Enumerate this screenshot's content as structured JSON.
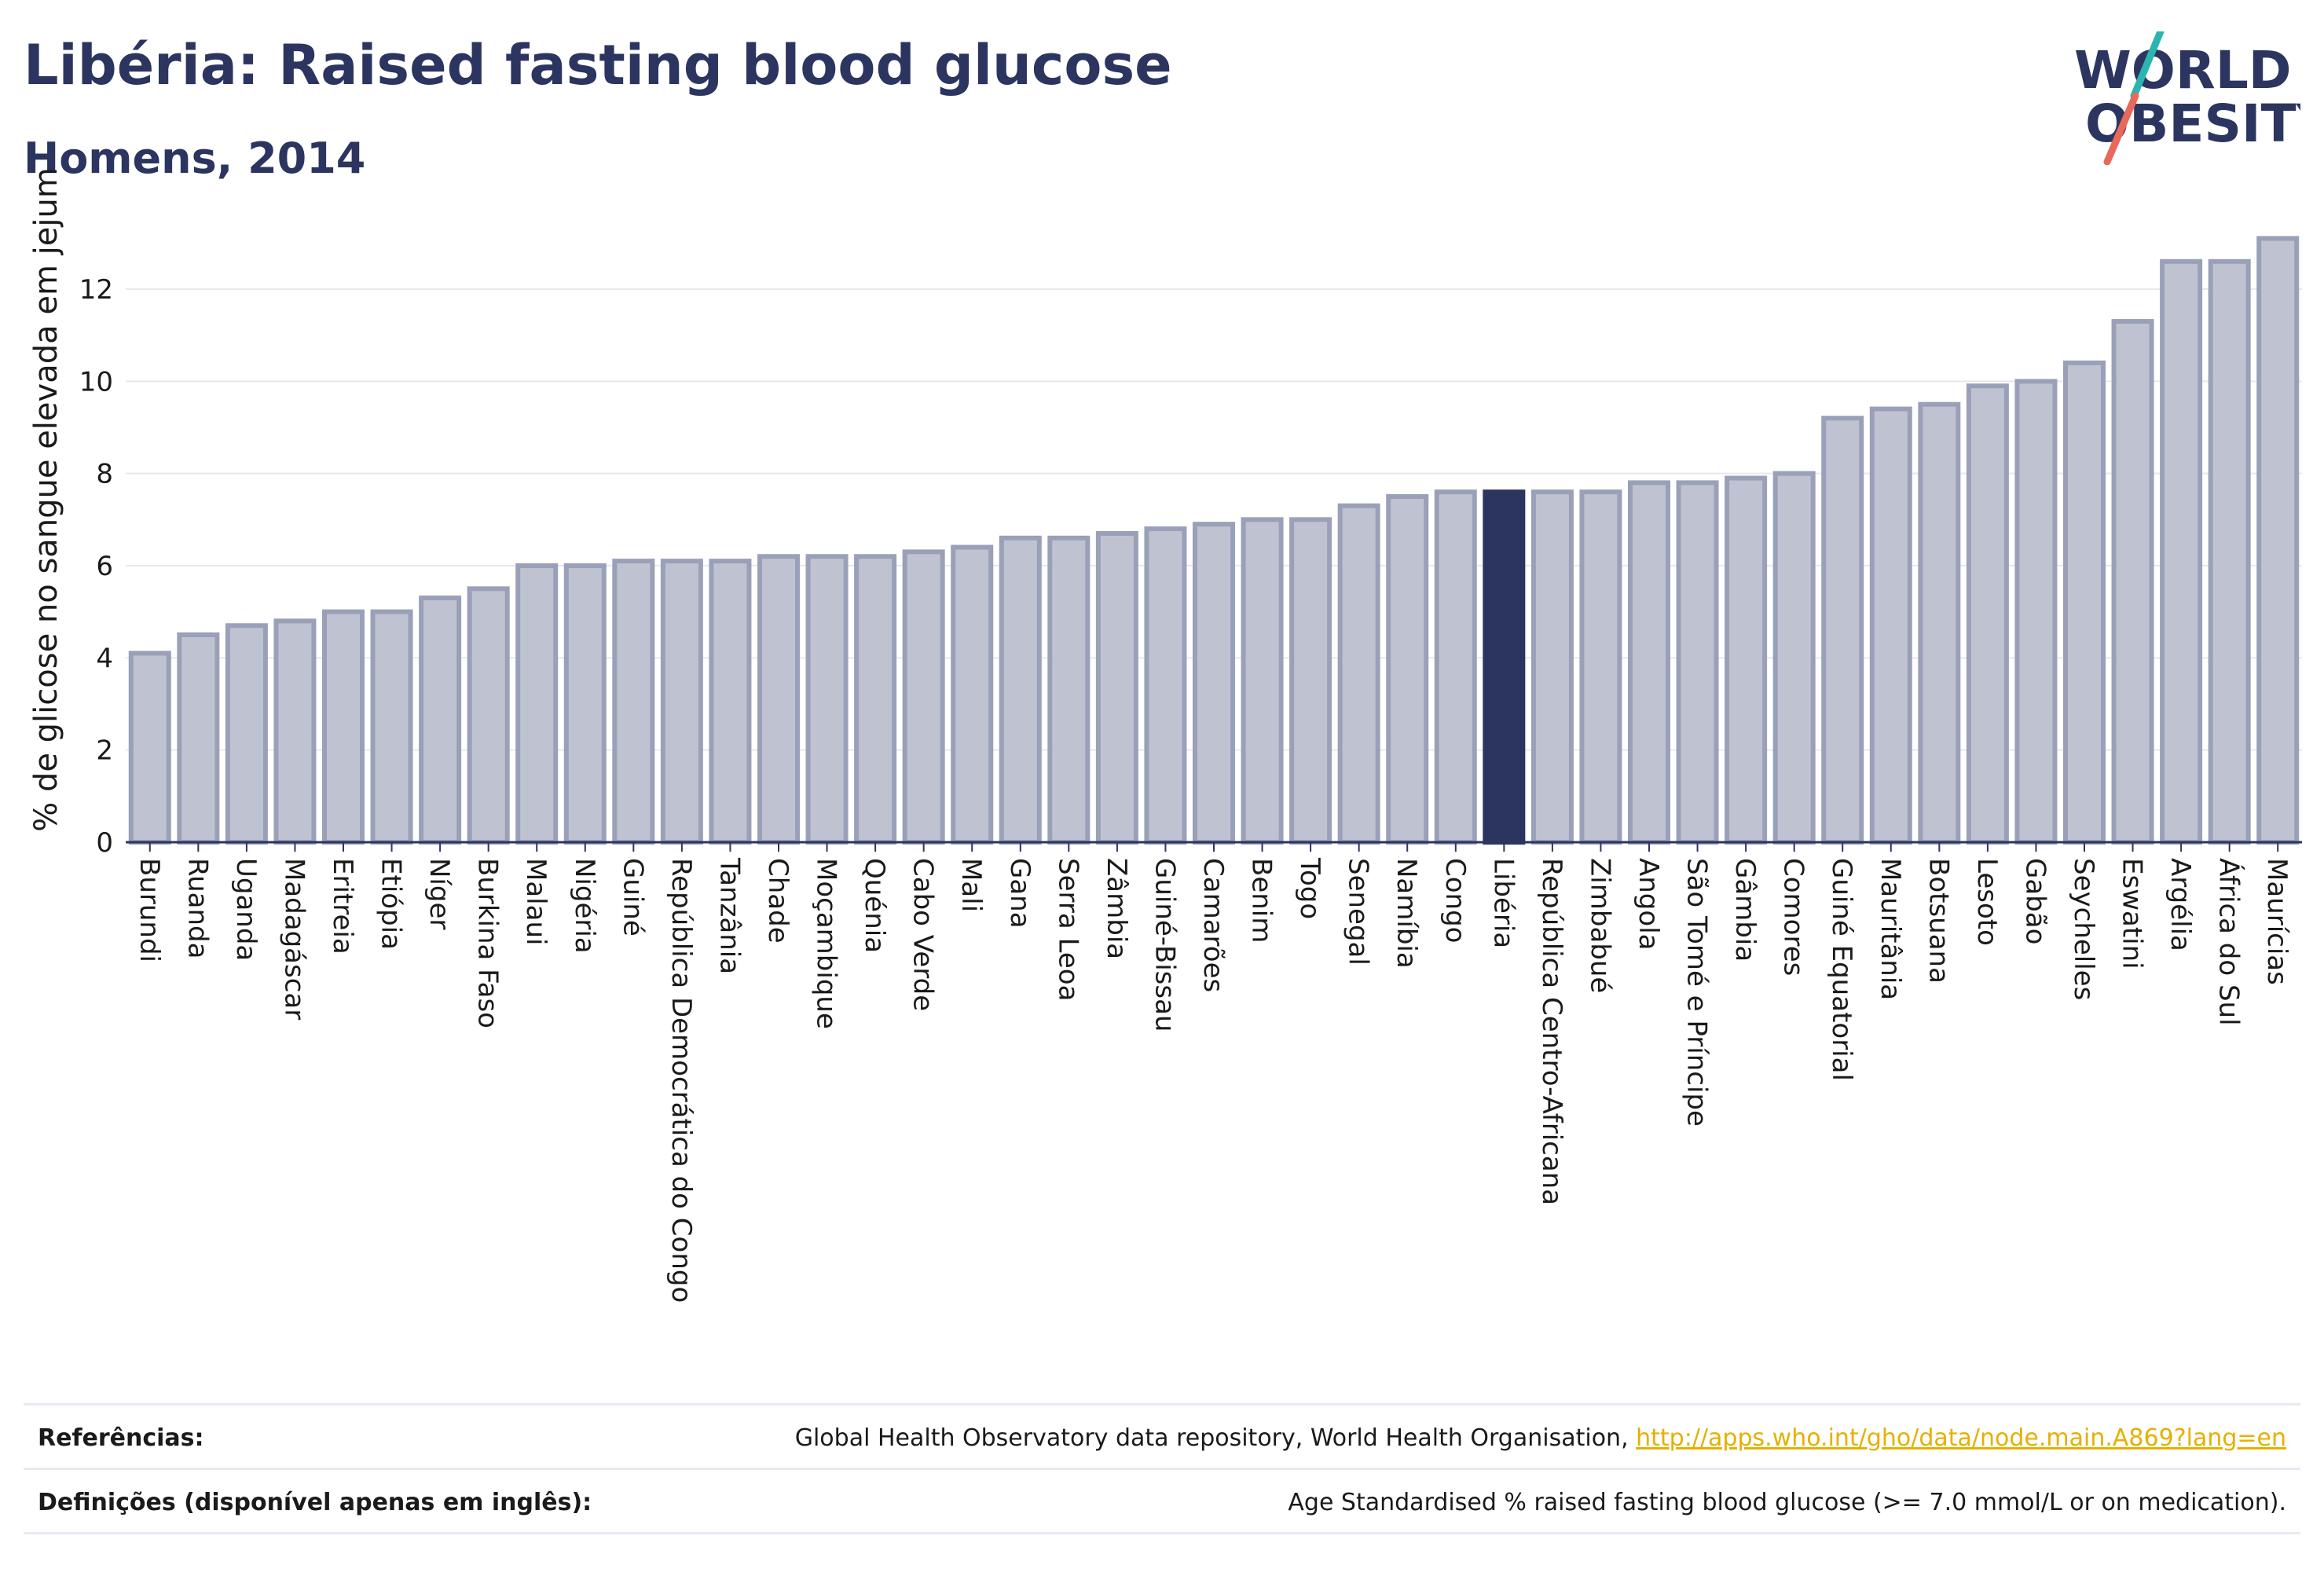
{
  "header": {
    "title": "Libéria: Raised fasting blood glucose",
    "subtitle": "Homens, 2014"
  },
  "logo": {
    "line1": "WORLD",
    "line2": "OBESITY",
    "accent_teal": "#2bb5b0",
    "accent_red": "#e8695a"
  },
  "footer": {
    "references_label": "Referências:",
    "references_text": "Global Health Observatory data repository, World Health Organisation, ",
    "references_link": "http://apps.who.int/gho/data/node.main.A869?lang=en",
    "definitions_label": "Definições (disponível apenas em inglês):",
    "definitions_text": "Age Standardised % raised fasting blood glucose (>= 7.0 mmol/L or on medication)."
  },
  "chart_data": {
    "type": "bar",
    "ylabel": "% de glicose no sangue elevada em jejum",
    "ylim": [
      0,
      13.5
    ],
    "yticks": [
      0,
      2,
      4,
      6,
      8,
      10,
      12
    ],
    "grid": true,
    "highlight": "Libéria",
    "colors": {
      "bar": "#bfc3d1",
      "bar_edge": "#9aa0b8",
      "highlight": "#2b3560"
    },
    "categories": [
      "Burundi",
      "Ruanda",
      "Uganda",
      "Madagáscar",
      "Eritreia",
      "Etiópia",
      "Níger",
      "Burkina Faso",
      "Malaui",
      "Nigéria",
      "Guiné",
      "República Democrática do Congo",
      "Tanzânia",
      "Chade",
      "Moçambique",
      "Quénia",
      "Cabo Verde",
      "Mali",
      "Gana",
      "Serra Leoa",
      "Zâmbia",
      "Guiné-Bissau",
      "Camarões",
      "Benim",
      "Togo",
      "Senegal",
      "Namíbia",
      "Congo",
      "Libéria",
      "República Centro-Africana",
      "Zimbabué",
      "Angola",
      "São Tomé e Príncipe",
      "Gâmbia",
      "Comores",
      "Guiné Equatorial",
      "Mauritânia",
      "Botsuana",
      "Lesoto",
      "Gabão",
      "Seychelles",
      "Eswatini",
      "Argélia",
      "África do Sul",
      "Maurícias"
    ],
    "values": [
      4.1,
      4.5,
      4.7,
      4.8,
      5.0,
      5.0,
      5.3,
      5.5,
      6.0,
      6.0,
      6.1,
      6.1,
      6.1,
      6.2,
      6.2,
      6.2,
      6.3,
      6.4,
      6.6,
      6.6,
      6.7,
      6.8,
      6.9,
      7.0,
      7.0,
      7.3,
      7.5,
      7.6,
      7.6,
      7.6,
      7.6,
      7.8,
      7.8,
      7.9,
      8.0,
      9.2,
      9.4,
      9.5,
      9.9,
      10.0,
      10.4,
      11.3,
      12.6,
      12.6,
      13.1
    ]
  }
}
